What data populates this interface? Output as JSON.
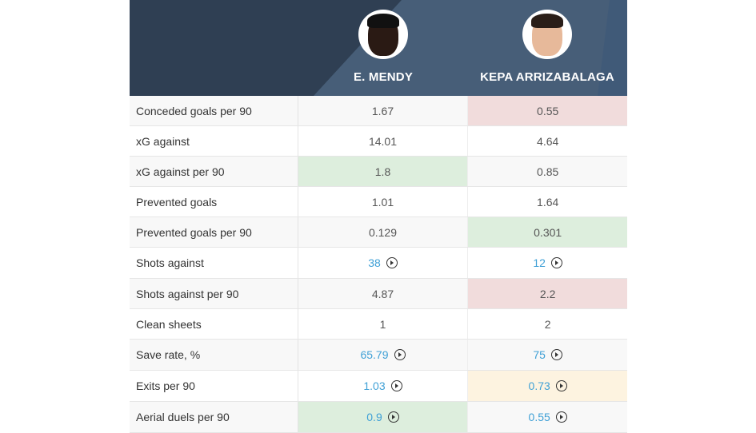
{
  "players": [
    {
      "name": "E. MENDY"
    },
    {
      "name": "KEPA ARRIZABALAGA"
    }
  ],
  "colors": {
    "worse": "#f1dcdc",
    "better": "#ddeedd",
    "neutral": "#fdf3e0",
    "link": "#3fa0d6",
    "header": "#2f3f53"
  },
  "rows": [
    {
      "label": "Conceded goals per 90",
      "v1": "1.67",
      "v2": "0.55",
      "h1": "",
      "h2": "red",
      "play": false
    },
    {
      "label": "xG against",
      "v1": "14.01",
      "v2": "4.64",
      "h1": "",
      "h2": "",
      "play": false
    },
    {
      "label": "xG against per 90",
      "v1": "1.8",
      "v2": "0.85",
      "h1": "green",
      "h2": "",
      "play": false
    },
    {
      "label": "Prevented goals",
      "v1": "1.01",
      "v2": "1.64",
      "h1": "",
      "h2": "",
      "play": false
    },
    {
      "label": "Prevented goals per 90",
      "v1": "0.129",
      "v2": "0.301",
      "h1": "",
      "h2": "green",
      "play": false
    },
    {
      "label": "Shots against",
      "v1": "38",
      "v2": "12",
      "h1": "",
      "h2": "",
      "play": true
    },
    {
      "label": "Shots against per 90",
      "v1": "4.87",
      "v2": "2.2",
      "h1": "",
      "h2": "red",
      "play": false
    },
    {
      "label": "Clean sheets",
      "v1": "1",
      "v2": "2",
      "h1": "",
      "h2": "",
      "play": false
    },
    {
      "label": "Save rate, %",
      "v1": "65.79",
      "v2": "75",
      "h1": "",
      "h2": "",
      "play": true
    },
    {
      "label": "Exits per 90",
      "v1": "1.03",
      "v2": "0.73",
      "h1": "",
      "h2": "yellow",
      "play": true
    },
    {
      "label": "Aerial duels per 90",
      "v1": "0.9",
      "v2": "0.55",
      "h1": "green",
      "h2": "",
      "play": true
    }
  ]
}
